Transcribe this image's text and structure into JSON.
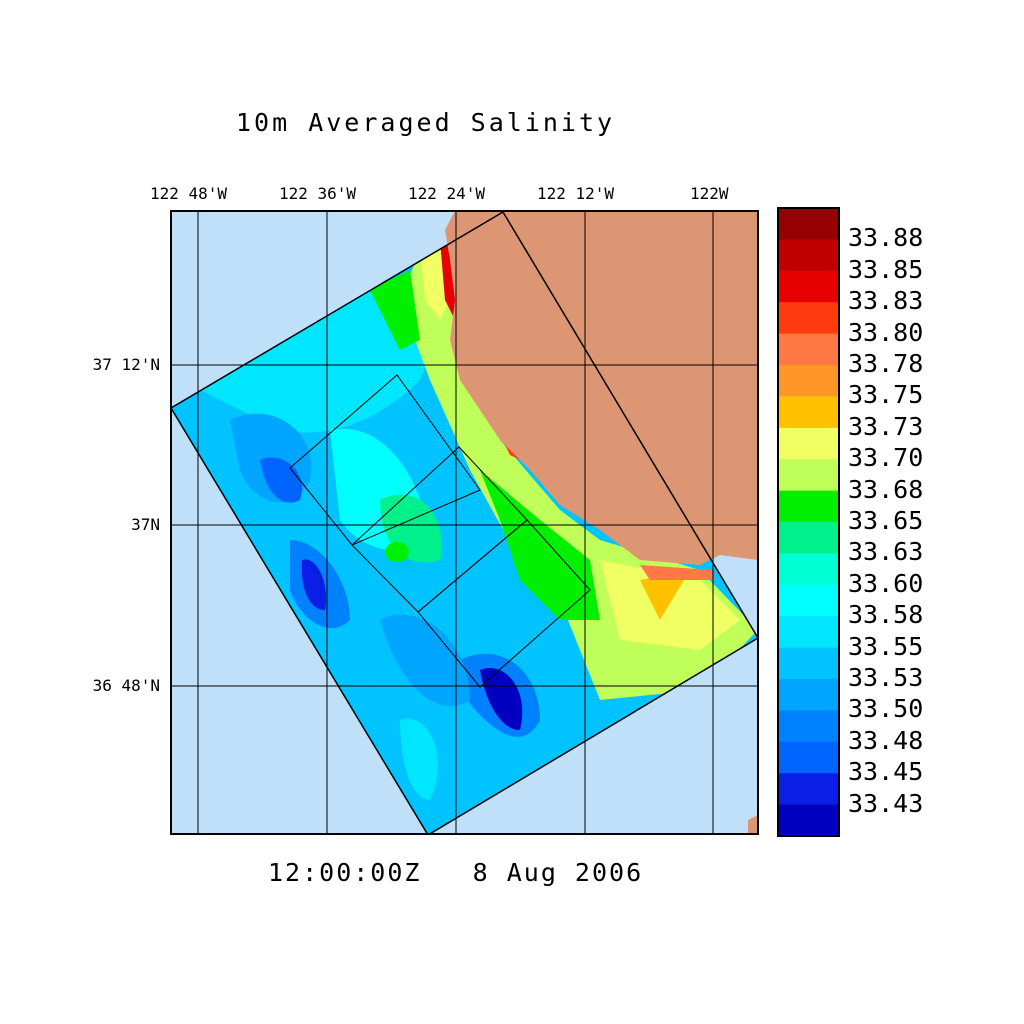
{
  "title": "10m Averaged Salinity",
  "timestamp": "12:00:00Z   8 Aug 2006",
  "lon_labels": [
    "122 48'W",
    "122 36'W",
    "122 24'W",
    "122 12'W",
    "122W"
  ],
  "lat_labels": [
    "37 12'N",
    "37N",
    "36 48'N"
  ],
  "colors": {
    "ocean": "#c0e0fa",
    "land": "#dc9673"
  },
  "chart_data": {
    "type": "heatmap",
    "title": "10m Averaged Salinity",
    "variable": "Salinity",
    "depth": "10m",
    "time": "12:00:00Z 8 Aug 2006",
    "x_ticks": [
      "122 48'W",
      "122 36'W",
      "122 24'W",
      "122 12'W",
      "122W"
    ],
    "y_ticks": [
      "37 12'N",
      "37N",
      "36 48'N"
    ],
    "colorbar": {
      "labels": [
        "33.88",
        "33.85",
        "33.83",
        "33.80",
        "33.78",
        "33.75",
        "33.73",
        "33.70",
        "33.68",
        "33.65",
        "33.63",
        "33.60",
        "33.58",
        "33.55",
        "33.53",
        "33.50",
        "33.48",
        "33.45",
        "33.43"
      ],
      "colors": [
        "#960000",
        "#c00000",
        "#e60000",
        "#ff3c0f",
        "#ff7846",
        "#ff9628",
        "#ffc000",
        "#f0ff64",
        "#c0ff5a",
        "#00f000",
        "#00f08c",
        "#00ffd2",
        "#00ffff",
        "#00e6ff",
        "#00c3ff",
        "#00a5ff",
        "#0082ff",
        "#0064ff",
        "#0a1ee6",
        "#0000c0"
      ]
    }
  }
}
